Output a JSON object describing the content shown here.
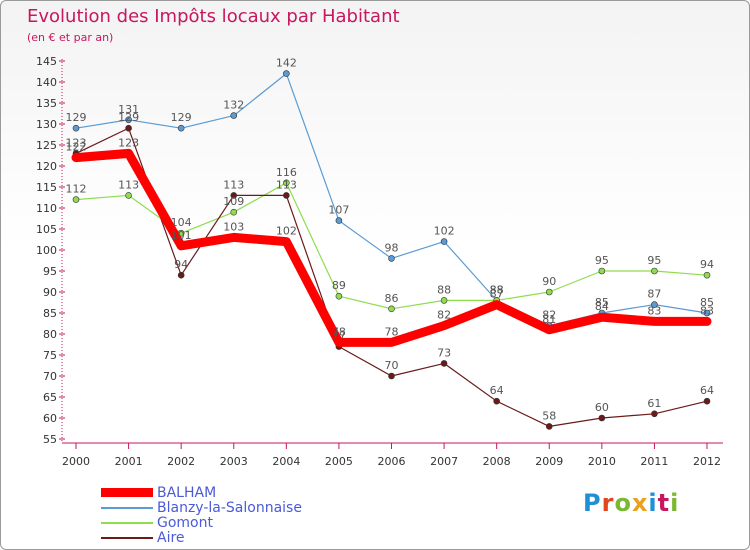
{
  "title": "Evolution des Impôts locaux par Habitant",
  "subtitle": "(en € et par an)",
  "logo": {
    "text": "Proxiti",
    "colors": [
      "#1f8fd6",
      "#e0471f",
      "#7ab830",
      "#e8a21f",
      "#1f8fd6",
      "#c8165f",
      "#7ab830"
    ]
  },
  "colors": {
    "accent": "#c8165f",
    "legend_text": "#4b5ad6"
  },
  "chart_data": {
    "type": "line",
    "categories": [
      "2000",
      "2001",
      "2002",
      "2003",
      "2004",
      "2005",
      "2006",
      "2007",
      "2008",
      "2009",
      "2010",
      "2011",
      "2012"
    ],
    "ylim": [
      55,
      145
    ],
    "yticks": [
      55,
      60,
      65,
      70,
      75,
      80,
      85,
      90,
      95,
      100,
      105,
      110,
      115,
      120,
      125,
      130,
      135,
      140,
      145
    ],
    "grid": false,
    "series": [
      {
        "name": "BALHAM",
        "color": "#ff0000",
        "values": [
          122,
          123,
          101,
          103,
          102,
          78,
          78,
          82,
          87,
          81,
          84,
          83,
          83
        ]
      },
      {
        "name": "Blanzy-la-Salonnaise",
        "color": "#5b9bd5",
        "values": [
          129,
          131,
          129,
          132,
          142,
          107,
          98,
          102,
          88,
          82,
          85,
          87,
          85
        ]
      },
      {
        "name": "Gomont",
        "color": "#8fdc4e",
        "values": [
          112,
          113,
          104,
          109,
          116,
          89,
          86,
          88,
          88,
          90,
          95,
          95,
          94
        ]
      },
      {
        "name": "Aire",
        "color": "#6b1a1a",
        "values": [
          123,
          129,
          94,
          113,
          113,
          77,
          70,
          73,
          64,
          58,
          60,
          61,
          64
        ]
      }
    ]
  }
}
